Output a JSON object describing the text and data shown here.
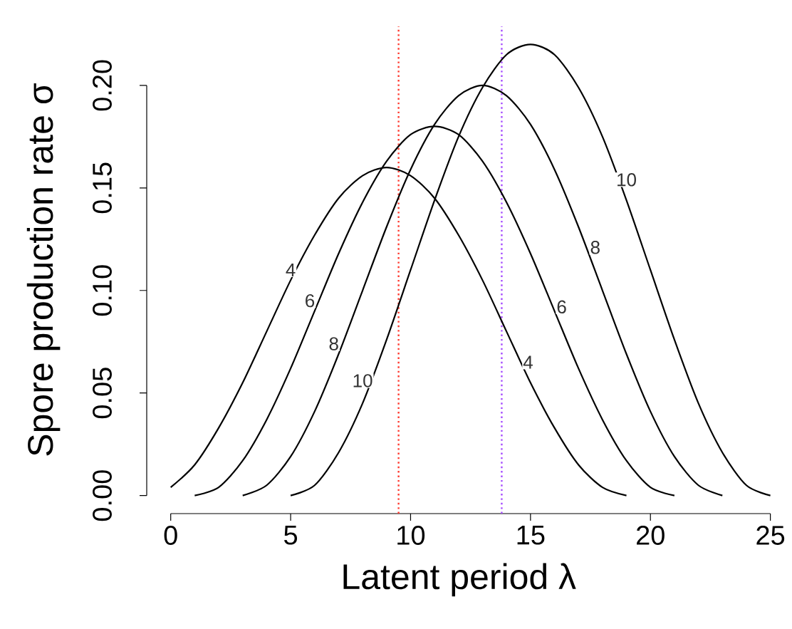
{
  "chart_data": {
    "type": "line",
    "xlabel": "Latent period λ",
    "ylabel": "Spore production rate σ",
    "line_style": "solid",
    "series": [
      {
        "color": "#000000",
        "x": [
          0,
          1,
          2,
          3,
          4,
          5,
          6,
          7,
          8,
          9,
          10,
          11,
          12,
          13,
          14,
          15,
          16,
          17,
          18,
          19
        ],
        "values": [
          0.004,
          0.015,
          0.033,
          0.055,
          0.08,
          0.105,
          0.127,
          0.145,
          0.156,
          0.16,
          0.156,
          0.145,
          0.127,
          0.105,
          0.08,
          0.055,
          0.033,
          0.015,
          0.004,
          0.0
        ]
      },
      {
        "color": "#000000",
        "x": [
          1,
          2,
          3,
          4,
          5,
          6,
          7,
          8,
          9,
          10,
          11,
          12,
          13,
          14,
          15,
          16,
          17,
          18,
          19,
          20,
          21
        ],
        "values": [
          0.0,
          0.004,
          0.017,
          0.037,
          0.062,
          0.09,
          0.118,
          0.143,
          0.163,
          0.176,
          0.18,
          0.176,
          0.163,
          0.143,
          0.118,
          0.09,
          0.062,
          0.037,
          0.017,
          0.004,
          0.0
        ]
      },
      {
        "color": "#000000",
        "x": [
          3,
          4,
          5,
          6,
          7,
          8,
          9,
          10,
          11,
          12,
          13,
          14,
          15,
          16,
          17,
          18,
          19,
          20,
          21,
          22,
          23
        ],
        "values": [
          0.0,
          0.005,
          0.019,
          0.041,
          0.069,
          0.1,
          0.131,
          0.159,
          0.181,
          0.195,
          0.2,
          0.195,
          0.181,
          0.159,
          0.131,
          0.1,
          0.069,
          0.041,
          0.019,
          0.005,
          0.0
        ]
      },
      {
        "color": "#000000",
        "x": [
          5,
          6,
          7,
          8,
          9,
          10,
          11,
          12,
          13,
          14,
          15,
          16,
          17,
          18,
          19,
          20,
          21,
          22,
          23,
          24,
          25
        ],
        "values": [
          0.0,
          0.005,
          0.021,
          0.045,
          0.076,
          0.11,
          0.144,
          0.175,
          0.199,
          0.215,
          0.22,
          0.215,
          0.199,
          0.175,
          0.144,
          0.11,
          0.076,
          0.045,
          0.021,
          0.005,
          0.0
        ]
      }
    ],
    "xlim": [
      -1,
      25
    ],
    "ylim": [
      -0.0088,
      0.2288
    ],
    "xticks": [
      0,
      5,
      10,
      15,
      20,
      25
    ],
    "yticks": [
      {
        "value": 0,
        "label": "0.00"
      },
      {
        "value": 0.05,
        "label": "0.05"
      },
      {
        "value": 0.1,
        "label": "0.10"
      },
      {
        "value": 0.15,
        "label": "0.15"
      },
      {
        "value": 0.2,
        "label": "0.20"
      }
    ],
    "ref_lines": [
      {
        "axis": "x",
        "value": 9.5,
        "color": "#ff3b30",
        "line_style": "dotted"
      },
      {
        "axis": "x",
        "value": 13.8,
        "color": "#a64dff",
        "line_style": "dotted"
      }
    ],
    "annotations": [
      {
        "text": "4",
        "x": 5,
        "y": 0.11
      },
      {
        "text": "6",
        "x": 5.8,
        "y": 0.095
      },
      {
        "text": "8",
        "x": 6.8,
        "y": 0.074
      },
      {
        "text": "10",
        "x": 8,
        "y": 0.056
      },
      {
        "text": "4",
        "x": 14.9,
        "y": 0.065
      },
      {
        "text": "6",
        "x": 16.3,
        "y": 0.092
      },
      {
        "text": "8",
        "x": 17.7,
        "y": 0.121
      },
      {
        "text": "10",
        "x": 19,
        "y": 0.154
      }
    ]
  }
}
